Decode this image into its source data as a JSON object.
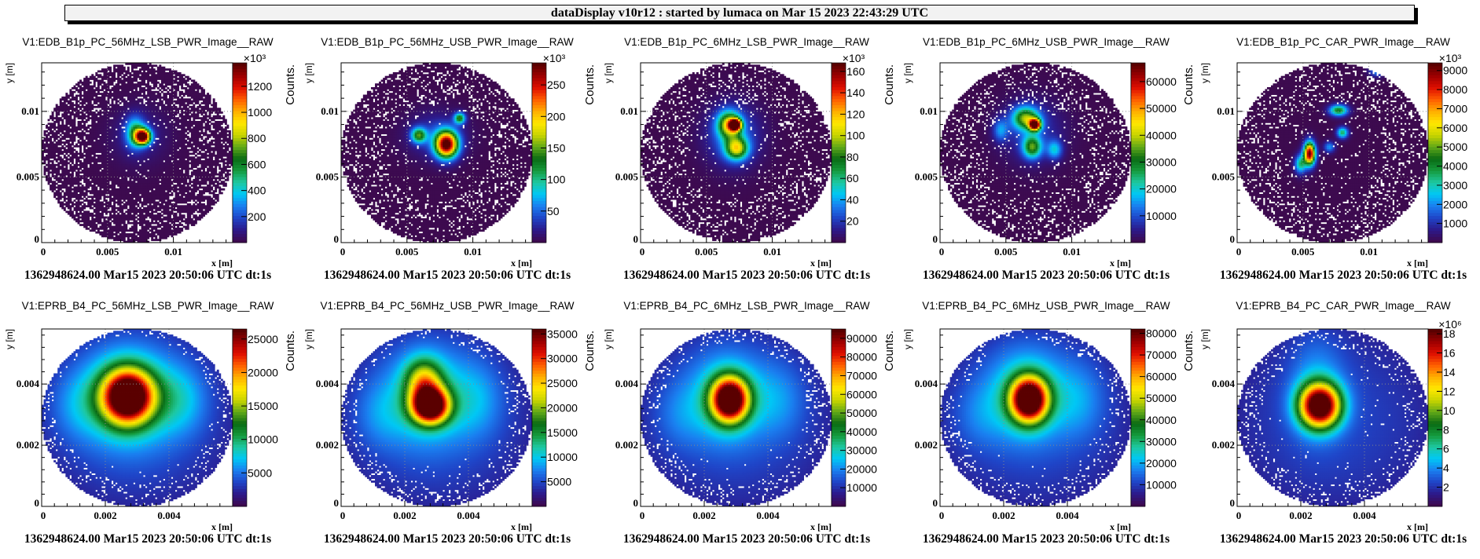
{
  "header": {
    "title": "dataDisplay v10r12 : started by lumaca on Mar 15 2023 22:43:29 UTC"
  },
  "palette": [
    "#3d0a4f",
    "#2c1a8c",
    "#1f45c8",
    "#1a7ff0",
    "#00c8f5",
    "#1ec8a0",
    "#159a3c",
    "#0a6a14",
    "#60a818",
    "#c8d400",
    "#ffe800",
    "#ffb000",
    "#ff6000",
    "#e01000",
    "#a00000",
    "#5a0000"
  ],
  "chart_data": [
    {
      "type": "heatmap",
      "title": "V1:EDB_B1p_PC_56MHz_LSB_PWR_Image__RAW",
      "xlabel": "x [m]",
      "ylabel": "y [m]",
      "zlabel": "Counts.",
      "xlim": [
        0,
        0.0145
      ],
      "ylim": [
        0,
        0.0137
      ],
      "xticks": [
        "0",
        "0.005",
        "0.01"
      ],
      "yticks": [
        "0",
        "0.005",
        "0.01"
      ],
      "zlim": [
        0,
        1380000
      ],
      "zmultiplier": "×10³",
      "zticks": [
        "200",
        "400",
        "600",
        "800",
        "1000",
        "1200"
      ],
      "grid": true,
      "footer": "1362948624.00 Mar15 2023 20:50:06 UTC dt:1s",
      "blobs": [
        {
          "x": 0.0077,
          "y": 0.0081,
          "sx": 0.0004,
          "sy": 0.0004,
          "amp": 1.0
        },
        {
          "x": 0.0071,
          "y": 0.0084,
          "sx": 0.0005,
          "sy": 0.0008,
          "amp": 0.35
        },
        {
          "x": 0.0074,
          "y": 0.0082,
          "sx": 0.0014,
          "sy": 0.0014,
          "amp": 0.08
        }
      ]
    },
    {
      "type": "heatmap",
      "title": "V1:EDB_B1p_PC_56MHz_USB_PWR_Image__RAW",
      "xlabel": "x [m]",
      "ylabel": "y [m]",
      "zlabel": "Counts.",
      "xlim": [
        0,
        0.0145
      ],
      "ylim": [
        0,
        0.0137
      ],
      "xticks": [
        "0",
        "0.005",
        "0.01"
      ],
      "yticks": [
        "0",
        "0.005",
        "0.01"
      ],
      "zlim": [
        0,
        285000
      ],
      "zmultiplier": "×10³",
      "zticks": [
        "50",
        "100",
        "150",
        "200",
        "250"
      ],
      "grid": true,
      "footer": "1362948624.00 Mar15 2023 20:50:06 UTC dt:1s",
      "blobs": [
        {
          "x": 0.008,
          "y": 0.0075,
          "sx": 0.0006,
          "sy": 0.0007,
          "amp": 1.0
        },
        {
          "x": 0.0059,
          "y": 0.0082,
          "sx": 0.0004,
          "sy": 0.0004,
          "amp": 0.45
        },
        {
          "x": 0.009,
          "y": 0.0095,
          "sx": 0.0003,
          "sy": 0.0003,
          "amp": 0.45
        },
        {
          "x": 0.0072,
          "y": 0.0082,
          "sx": 0.0015,
          "sy": 0.0012,
          "amp": 0.12
        }
      ]
    },
    {
      "type": "heatmap",
      "title": "V1:EDB_B1p_PC_6MHz_LSB_PWR_Image__RAW",
      "xlabel": "x [m]",
      "ylabel": "y [m]",
      "zlabel": "Counts.",
      "xlim": [
        0,
        0.0145
      ],
      "ylim": [
        0,
        0.0137
      ],
      "xticks": [
        "0",
        "0.005",
        "0.01"
      ],
      "yticks": [
        "0",
        "0.005",
        "0.01"
      ],
      "zlim": [
        0,
        168000
      ],
      "zmultiplier": "×10³",
      "zticks": [
        "20",
        "40",
        "60",
        "80",
        "100",
        "120",
        "140",
        "160"
      ],
      "grid": true,
      "footer": "1362948624.00 Mar15 2023 20:50:06 UTC dt:1s",
      "blobs": [
        {
          "x": 0.0072,
          "y": 0.009,
          "sx": 0.0003,
          "sy": 0.0003,
          "amp": 1.0
        },
        {
          "x": 0.0067,
          "y": 0.009,
          "sx": 0.0006,
          "sy": 0.0007,
          "amp": 0.55
        },
        {
          "x": 0.0073,
          "y": 0.0072,
          "sx": 0.0006,
          "sy": 0.0006,
          "amp": 0.55
        },
        {
          "x": 0.007,
          "y": 0.0082,
          "sx": 0.0014,
          "sy": 0.0016,
          "amp": 0.18
        }
      ]
    },
    {
      "type": "heatmap",
      "title": "V1:EDB_B1p_PC_6MHz_USB_PWR_Image__RAW",
      "xlabel": "x [m]",
      "ylabel": "y [m]",
      "zlabel": "Counts.",
      "xlim": [
        0,
        0.0145
      ],
      "ylim": [
        0,
        0.0137
      ],
      "xticks": [
        "0",
        "0.005",
        "0.01"
      ],
      "yticks": [
        "0",
        "0.005",
        "0.01"
      ],
      "zlim": [
        0,
        67000
      ],
      "zmultiplier": "",
      "zticks": [
        "10000",
        "20000",
        "30000",
        "40000",
        "50000",
        "60000"
      ],
      "grid": true,
      "footer": "1362948624.00 Mar15 2023 20:50:06 UTC dt:1s",
      "blobs": [
        {
          "x": 0.0072,
          "y": 0.009,
          "sx": 0.0003,
          "sy": 0.0003,
          "amp": 1.0
        },
        {
          "x": 0.0065,
          "y": 0.0095,
          "sx": 0.0007,
          "sy": 0.0006,
          "amp": 0.5
        },
        {
          "x": 0.007,
          "y": 0.0073,
          "sx": 0.0005,
          "sy": 0.0006,
          "amp": 0.45
        },
        {
          "x": 0.0087,
          "y": 0.0071,
          "sx": 0.0004,
          "sy": 0.0005,
          "amp": 0.25
        },
        {
          "x": 0.0046,
          "y": 0.0086,
          "sx": 0.0004,
          "sy": 0.0006,
          "amp": 0.2
        },
        {
          "x": 0.007,
          "y": 0.0085,
          "sx": 0.0016,
          "sy": 0.0016,
          "amp": 0.12
        }
      ]
    },
    {
      "type": "heatmap",
      "title": "V1:EDB_B1p_PC_CAR_PWR_Image__RAW",
      "xlabel": "x [m]",
      "ylabel": "y [m]",
      "zlabel": "Counts.",
      "xlim": [
        0,
        0.0145
      ],
      "ylim": [
        0,
        0.0137
      ],
      "xticks": [
        "0",
        "0.005",
        "0.01"
      ],
      "yticks": [
        "0",
        "0.005",
        "0.01"
      ],
      "zlim": [
        0,
        9400000
      ],
      "zmultiplier": "×10³",
      "zticks": [
        "1000",
        "2000",
        "3000",
        "4000",
        "5000",
        "6000",
        "7000",
        "8000",
        "9000"
      ],
      "grid": true,
      "footer": "1362948624.00 Mar15 2023 20:50:06 UTC dt:1s",
      "blobs": [
        {
          "x": 0.0055,
          "y": 0.0068,
          "sx": 0.0003,
          "sy": 0.0006,
          "amp": 1.0
        },
        {
          "x": 0.0077,
          "y": 0.0101,
          "sx": 0.0005,
          "sy": 0.0003,
          "amp": 0.45
        },
        {
          "x": 0.008,
          "y": 0.0084,
          "sx": 0.0003,
          "sy": 0.0003,
          "amp": 0.38
        },
        {
          "x": 0.0048,
          "y": 0.006,
          "sx": 0.0003,
          "sy": 0.0005,
          "amp": 0.35
        },
        {
          "x": 0.007,
          "y": 0.0073,
          "sx": 0.0003,
          "sy": 0.0003,
          "amp": 0.22
        },
        {
          "x": 0.0106,
          "y": 0.0131,
          "sx": 0.0004,
          "sy": 0.0003,
          "amp": 0.22
        }
      ]
    },
    {
      "type": "heatmap",
      "title": "V1:EPRB_B4_PC_56MHz_LSB_PWR_Image__RAW",
      "xlabel": "x [m]",
      "ylabel": "y [m]",
      "zlabel": "Counts.",
      "xlim": [
        0,
        0.006
      ],
      "ylim": [
        0,
        0.0058
      ],
      "xticks": [
        "0",
        "0.002",
        "0.004"
      ],
      "yticks": [
        "0",
        "0.002",
        "0.004"
      ],
      "zlim": [
        0,
        26500
      ],
      "zmultiplier": "",
      "zticks": [
        "5000",
        "10000",
        "15000",
        "20000",
        "25000"
      ],
      "grid": true,
      "footer": "1362948624.00 Mar15 2023 20:50:06 UTC dt:1s",
      "blobs": [
        {
          "x": 0.0027,
          "y": 0.0036,
          "sx": 0.00055,
          "sy": 0.0006,
          "amp": 1.0
        },
        {
          "x": 0.0027,
          "y": 0.0036,
          "sx": 0.0011,
          "sy": 0.0012,
          "amp": 0.25
        },
        {
          "x": 0.0044,
          "y": 0.0035,
          "sx": 0.0006,
          "sy": 0.0008,
          "amp": 0.12
        },
        {
          "x": 0.0011,
          "y": 0.0033,
          "sx": 0.0006,
          "sy": 0.0008,
          "amp": 0.08
        }
      ]
    },
    {
      "type": "heatmap",
      "title": "V1:EPRB_B4_PC_56MHz_USB_PWR_Image__RAW",
      "xlabel": "x [m]",
      "ylabel": "y [m]",
      "zlabel": "Counts.",
      "xlim": [
        0,
        0.006
      ],
      "ylim": [
        0,
        0.0058
      ],
      "xticks": [
        "0",
        "0.002",
        "0.004"
      ],
      "yticks": [
        "0",
        "0.002",
        "0.004"
      ],
      "zlim": [
        0,
        36000
      ],
      "zmultiplier": "",
      "zticks": [
        "5000",
        "10000",
        "15000",
        "20000",
        "25000",
        "30000",
        "35000"
      ],
      "grid": true,
      "footer": "1362948624.00 Mar15 2023 20:50:06 UTC dt:1s",
      "blobs": [
        {
          "x": 0.0028,
          "y": 0.0033,
          "sx": 0.0004,
          "sy": 0.0004,
          "amp": 1.0
        },
        {
          "x": 0.0026,
          "y": 0.0041,
          "sx": 0.0004,
          "sy": 0.0005,
          "amp": 0.42
        },
        {
          "x": 0.0027,
          "y": 0.0036,
          "sx": 0.001,
          "sy": 0.0012,
          "amp": 0.2
        },
        {
          "x": 0.0043,
          "y": 0.0035,
          "sx": 0.0006,
          "sy": 0.0009,
          "amp": 0.1
        },
        {
          "x": 0.0012,
          "y": 0.003,
          "sx": 0.0006,
          "sy": 0.0008,
          "amp": 0.08
        }
      ]
    },
    {
      "type": "heatmap",
      "title": "V1:EPRB_B4_PC_6MHz_LSB_PWR_Image__RAW",
      "xlabel": "x [m]",
      "ylabel": "y [m]",
      "zlabel": "Counts.",
      "xlim": [
        0,
        0.006
      ],
      "ylim": [
        0,
        0.0058
      ],
      "xticks": [
        "0",
        "0.002",
        "0.004"
      ],
      "yticks": [
        "0",
        "0.002",
        "0.004"
      ],
      "zlim": [
        0,
        95000
      ],
      "zmultiplier": "",
      "zticks": [
        "10000",
        "20000",
        "30000",
        "40000",
        "50000",
        "60000",
        "70000",
        "80000",
        "90000"
      ],
      "grid": true,
      "footer": "1362948624.00 Mar15 2023 20:50:06 UTC dt:1s",
      "blobs": [
        {
          "x": 0.0028,
          "y": 0.0035,
          "sx": 0.0004,
          "sy": 0.0005,
          "amp": 1.0
        },
        {
          "x": 0.0027,
          "y": 0.0036,
          "sx": 0.0009,
          "sy": 0.0011,
          "amp": 0.2
        },
        {
          "x": 0.0044,
          "y": 0.0035,
          "sx": 0.0006,
          "sy": 0.0009,
          "amp": 0.09
        },
        {
          "x": 0.0012,
          "y": 0.003,
          "sx": 0.0006,
          "sy": 0.0008,
          "amp": 0.07
        }
      ]
    },
    {
      "type": "heatmap",
      "title": "V1:EPRB_B4_PC_6MHz_USB_PWR_Image__RAW",
      "xlabel": "x [m]",
      "ylabel": "y [m]",
      "zlabel": "Counts.",
      "xlim": [
        0,
        0.006
      ],
      "ylim": [
        0,
        0.0058
      ],
      "xticks": [
        "0",
        "0.002",
        "0.004"
      ],
      "yticks": [
        "0",
        "0.002",
        "0.004"
      ],
      "zlim": [
        0,
        82000
      ],
      "zmultiplier": "",
      "zticks": [
        "10000",
        "20000",
        "30000",
        "40000",
        "50000",
        "60000",
        "70000",
        "80000"
      ],
      "grid": true,
      "footer": "1362948624.00 Mar15 2023 20:50:06 UTC dt:1s",
      "blobs": [
        {
          "x": 0.0028,
          "y": 0.0035,
          "sx": 0.0004,
          "sy": 0.0005,
          "amp": 1.0
        },
        {
          "x": 0.0027,
          "y": 0.0037,
          "sx": 0.0009,
          "sy": 0.0011,
          "amp": 0.22
        },
        {
          "x": 0.0044,
          "y": 0.0035,
          "sx": 0.0006,
          "sy": 0.0009,
          "amp": 0.1
        },
        {
          "x": 0.0012,
          "y": 0.003,
          "sx": 0.0006,
          "sy": 0.0008,
          "amp": 0.07
        }
      ]
    },
    {
      "type": "heatmap",
      "title": "V1:EPRB_B4_PC_CAR_PWR_Image__RAW",
      "xlabel": "x [m]",
      "ylabel": "y [m]",
      "zlabel": "Counts.",
      "xlim": [
        0,
        0.006
      ],
      "ylim": [
        0,
        0.0058
      ],
      "xticks": [
        "0",
        "0.002",
        "0.004"
      ],
      "yticks": [
        "0",
        "0.002",
        "0.004"
      ],
      "zlim": [
        0,
        18500000
      ],
      "zmultiplier": "×10⁶",
      "zticks": [
        "2",
        "4",
        "6",
        "8",
        "10",
        "12",
        "14",
        "16",
        "18"
      ],
      "grid": true,
      "footer": "1362948624.00 Mar15 2023 20:50:06 UTC dt:1s",
      "blobs": [
        {
          "x": 0.0026,
          "y": 0.0033,
          "sx": 0.00045,
          "sy": 0.0005,
          "amp": 1.0
        },
        {
          "x": 0.0025,
          "y": 0.004,
          "sx": 0.0006,
          "sy": 0.0012,
          "amp": 0.12
        }
      ]
    }
  ]
}
